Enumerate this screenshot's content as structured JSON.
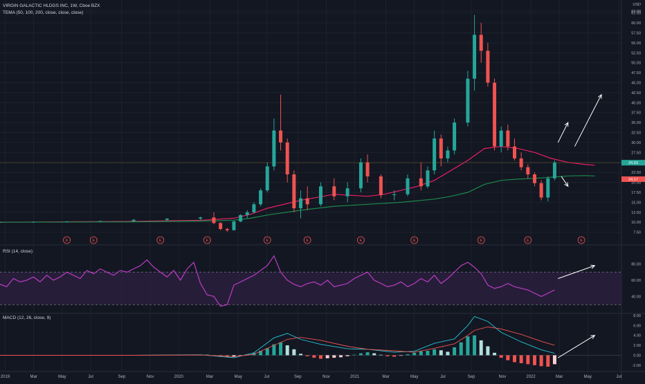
{
  "header": {
    "symbol_line": "VIRGIN GALACTIC HLDGS INC, 1W, Cboe BZX",
    "indicator_line": "TEMA (50, 100, 200, close, close, close)",
    "currency": "USD"
  },
  "panes": {
    "rsi_label": "RSI (14, close)",
    "macd_label": "MACD (12, 26, close, 9)"
  },
  "price_badges": {
    "last": "24.93",
    "tema": "24.17"
  },
  "colors": {
    "background": "#131722",
    "up": "#26a69a",
    "down": "#ef5350",
    "tema_fast": "#e91e63",
    "tema_slow": "#1b8a4b",
    "rsi": "#b23bb8",
    "macd": "#26c6da",
    "signal": "#ef5350",
    "annotation": "#ffffff"
  },
  "earnings_marker_label": "E",
  "chart_data": [
    {
      "type": "candlestick",
      "title": "VIRGIN GALACTIC HLDGS INC, 1W, Cboe BZX",
      "ylabel": "USD",
      "scale": "linear",
      "ylim": [
        7.5,
        62.5
      ],
      "y_ticks": [
        "63.00",
        "62.50",
        "60.00",
        "57.50",
        "55.00",
        "52.50",
        "50.00",
        "47.50",
        "45.00",
        "42.50",
        "40.00",
        "37.50",
        "35.00",
        "32.50",
        "30.00",
        "27.50",
        "25.00",
        "22.50",
        "20.00",
        "17.50",
        "15.00",
        "12.50",
        "10.00",
        "7.50"
      ],
      "x_ticks": [
        "2019",
        "Mar",
        "May",
        "Jul",
        "Sep",
        "Nov",
        "2020",
        "Mar",
        "May",
        "Jul",
        "Sep",
        "Nov",
        "2021",
        "Mar",
        "May",
        "Jul",
        "Sep",
        "Nov",
        "2022",
        "Mar",
        "May",
        "Jul"
      ],
      "series": [
        {
          "name": "TEMA (50)",
          "x": [
            0,
            40,
            60,
            70,
            75,
            80,
            90,
            100,
            110,
            115,
            120,
            125,
            130,
            135,
            140,
            145,
            150,
            155,
            160,
            165,
            170,
            175,
            178
          ],
          "y": [
            10,
            10.2,
            10.5,
            11,
            12,
            13.5,
            15.5,
            17,
            16.5,
            17,
            18,
            19,
            20.5,
            23,
            25.5,
            28.5,
            29,
            28.5,
            27.5,
            26,
            25,
            24.5,
            24.3
          ]
        },
        {
          "name": "TEMA (100)",
          "x": [
            0,
            40,
            60,
            70,
            75,
            80,
            90,
            100,
            110,
            120,
            130,
            135,
            140,
            145,
            150,
            155,
            160,
            165,
            170,
            175,
            178
          ],
          "y": [
            10,
            10.1,
            10.3,
            10.5,
            11,
            11.8,
            13,
            14,
            14.5,
            15,
            15.8,
            16.5,
            17.5,
            19.5,
            20.5,
            20.8,
            21,
            21.3,
            21.6,
            21.7,
            21.6
          ]
        }
      ],
      "candles": [
        {
          "x": 0,
          "o": 10,
          "h": 10.1,
          "l": 9.9,
          "c": 10.05
        },
        {
          "x": 10,
          "o": 10.05,
          "h": 10.2,
          "l": 9.95,
          "c": 10.1
        },
        {
          "x": 20,
          "o": 10.1,
          "h": 10.25,
          "l": 10,
          "c": 10.2
        },
        {
          "x": 30,
          "o": 10.2,
          "h": 10.4,
          "l": 10.1,
          "c": 10.3
        },
        {
          "x": 40,
          "o": 10.3,
          "h": 10.8,
          "l": 10.1,
          "c": 10.6
        },
        {
          "x": 50,
          "o": 10.6,
          "h": 11,
          "l": 10.3,
          "c": 10.9
        },
        {
          "x": 60,
          "o": 10.9,
          "h": 11.4,
          "l": 10.5,
          "c": 11.2
        },
        {
          "x": 64,
          "o": 11.2,
          "h": 12.5,
          "l": 9.5,
          "c": 9.8
        },
        {
          "x": 66,
          "o": 9.8,
          "h": 10,
          "l": 8,
          "c": 8.3
        },
        {
          "x": 68,
          "o": 8.3,
          "h": 8.6,
          "l": 7.6,
          "c": 8
        },
        {
          "x": 70,
          "o": 8,
          "h": 10.5,
          "l": 7.9,
          "c": 10.2
        },
        {
          "x": 72,
          "o": 10.2,
          "h": 12,
          "l": 10,
          "c": 11.8
        },
        {
          "x": 74,
          "o": 11.8,
          "h": 13,
          "l": 11,
          "c": 12.5
        },
        {
          "x": 76,
          "o": 12.5,
          "h": 15,
          "l": 12.2,
          "c": 14.5
        },
        {
          "x": 78,
          "o": 14.5,
          "h": 18.5,
          "l": 14,
          "c": 18
        },
        {
          "x": 80,
          "o": 18,
          "h": 25,
          "l": 17.5,
          "c": 24
        },
        {
          "x": 82,
          "o": 24,
          "h": 36,
          "l": 23,
          "c": 33
        },
        {
          "x": 84,
          "o": 33,
          "h": 42,
          "l": 28,
          "c": 30
        },
        {
          "x": 86,
          "o": 30,
          "h": 31,
          "l": 20,
          "c": 22
        },
        {
          "x": 88,
          "o": 22,
          "h": 23,
          "l": 12.5,
          "c": 13.5
        },
        {
          "x": 90,
          "o": 13.5,
          "h": 18,
          "l": 11,
          "c": 16
        },
        {
          "x": 92,
          "o": 16,
          "h": 19,
          "l": 13,
          "c": 14.5
        },
        {
          "x": 96,
          "o": 14.5,
          "h": 20,
          "l": 14,
          "c": 19
        },
        {
          "x": 100,
          "o": 19,
          "h": 21,
          "l": 15.5,
          "c": 16.5
        },
        {
          "x": 104,
          "o": 16.5,
          "h": 20,
          "l": 15,
          "c": 18.5
        },
        {
          "x": 108,
          "o": 18.5,
          "h": 26,
          "l": 17.5,
          "c": 25
        },
        {
          "x": 110,
          "o": 25,
          "h": 27,
          "l": 20,
          "c": 21.5
        },
        {
          "x": 114,
          "o": 21.5,
          "h": 22,
          "l": 16,
          "c": 16.8
        },
        {
          "x": 118,
          "o": 16.8,
          "h": 18,
          "l": 15.5,
          "c": 17
        },
        {
          "x": 122,
          "o": 17,
          "h": 22,
          "l": 16.5,
          "c": 21
        },
        {
          "x": 126,
          "o": 21,
          "h": 25,
          "l": 18,
          "c": 19
        },
        {
          "x": 128,
          "o": 19,
          "h": 24,
          "l": 18.5,
          "c": 23
        },
        {
          "x": 130,
          "o": 23,
          "h": 33,
          "l": 22,
          "c": 31
        },
        {
          "x": 132,
          "o": 31,
          "h": 32,
          "l": 24,
          "c": 26
        },
        {
          "x": 134,
          "o": 26,
          "h": 29,
          "l": 25,
          "c": 28
        },
        {
          "x": 136,
          "o": 28,
          "h": 36,
          "l": 27,
          "c": 35
        },
        {
          "x": 140,
          "o": 35,
          "h": 48,
          "l": 34,
          "c": 46
        },
        {
          "x": 142,
          "o": 46,
          "h": 62,
          "l": 43,
          "c": 57
        },
        {
          "x": 144,
          "o": 57,
          "h": 60,
          "l": 50,
          "c": 53
        },
        {
          "x": 146,
          "o": 53,
          "h": 55,
          "l": 44,
          "c": 45
        },
        {
          "x": 148,
          "o": 45,
          "h": 46,
          "l": 28,
          "c": 29
        },
        {
          "x": 150,
          "o": 29,
          "h": 34,
          "l": 27.5,
          "c": 33
        },
        {
          "x": 152,
          "o": 33,
          "h": 34.5,
          "l": 28,
          "c": 29
        },
        {
          "x": 154,
          "o": 29,
          "h": 31,
          "l": 25.5,
          "c": 26
        },
        {
          "x": 156,
          "o": 26,
          "h": 27.5,
          "l": 23,
          "c": 23.8
        },
        {
          "x": 158,
          "o": 23.8,
          "h": 24.5,
          "l": 21,
          "c": 22
        },
        {
          "x": 160,
          "o": 22,
          "h": 22.5,
          "l": 19,
          "c": 19.8
        },
        {
          "x": 162,
          "o": 19.8,
          "h": 20.5,
          "l": 15.5,
          "c": 16.2
        },
        {
          "x": 164,
          "o": 16.2,
          "h": 21.5,
          "l": 15.2,
          "c": 21
        },
        {
          "x": 166,
          "o": 21,
          "h": 25.5,
          "l": 20.5,
          "c": 24.93
        }
      ],
      "earnings_x": [
        20,
        28,
        48,
        62,
        80,
        92,
        108,
        124,
        144,
        158,
        174
      ],
      "annotations": [
        {
          "type": "arrow",
          "from": [
            167,
            30
          ],
          "to": [
            170,
            35
          ]
        },
        {
          "type": "arrow",
          "from": [
            172,
            29
          ],
          "to": [
            180,
            42
          ]
        },
        {
          "type": "arrow",
          "from": [
            168,
            21.5
          ],
          "to": [
            170,
            19
          ]
        }
      ]
    },
    {
      "type": "line",
      "title": "RSI (14, close)",
      "ylim": [
        20,
        100
      ],
      "y_ticks": [
        80.0,
        60.0,
        40.0
      ],
      "bands": [
        30,
        70
      ],
      "series": [
        {
          "name": "RSI",
          "x": [
            0,
            2,
            4,
            6,
            8,
            10,
            12,
            14,
            16,
            18,
            20,
            22,
            24,
            26,
            28,
            30,
            32,
            34,
            36,
            38,
            40,
            42,
            44,
            46,
            48,
            50,
            52,
            54,
            56,
            58,
            60,
            62,
            64,
            66,
            68,
            70,
            72,
            74,
            76,
            78,
            80,
            82,
            84,
            86,
            88,
            90,
            92,
            94,
            96,
            98,
            100,
            102,
            104,
            106,
            108,
            110,
            112,
            114,
            116,
            118,
            120,
            122,
            124,
            126,
            128,
            130,
            132,
            134,
            136,
            138,
            140,
            142,
            144,
            146,
            148,
            150,
            152,
            154,
            156,
            158,
            160,
            162,
            164,
            166
          ],
          "y": [
            55,
            52,
            62,
            58,
            60,
            64,
            58,
            66,
            60,
            64,
            70,
            66,
            62,
            72,
            68,
            74,
            70,
            66,
            72,
            70,
            74,
            78,
            85,
            76,
            70,
            64,
            72,
            60,
            74,
            82,
            56,
            42,
            40,
            28,
            30,
            54,
            58,
            62,
            66,
            72,
            78,
            90,
            70,
            60,
            55,
            52,
            56,
            58,
            54,
            60,
            52,
            54,
            56,
            62,
            66,
            70,
            60,
            56,
            52,
            54,
            58,
            52,
            56,
            62,
            58,
            66,
            56,
            62,
            70,
            78,
            82,
            76,
            68,
            54,
            50,
            52,
            56,
            52,
            50,
            48,
            44,
            40,
            44,
            48
          ]
        }
      ],
      "annotations": [
        {
          "type": "arrow",
          "from": [
            167,
            62
          ],
          "to": [
            178,
            78
          ]
        }
      ]
    },
    {
      "type": "bar",
      "title": "MACD (12, 26, close, 9)",
      "ylim": [
        -3,
        8
      ],
      "y_ticks": [
        "8.00",
        "6.00",
        "4.00",
        "2.00",
        "0.00",
        "-2.00"
      ],
      "histogram": {
        "x": [
          60,
          62,
          64,
          66,
          68,
          70,
          72,
          74,
          76,
          78,
          80,
          82,
          84,
          86,
          88,
          90,
          92,
          94,
          96,
          98,
          100,
          102,
          104,
          106,
          108,
          110,
          112,
          114,
          116,
          118,
          120,
          122,
          124,
          126,
          128,
          130,
          132,
          134,
          136,
          138,
          140,
          142,
          144,
          146,
          148,
          150,
          152,
          154,
          156,
          158,
          160,
          162,
          164,
          166
        ],
        "y": [
          0.1,
          0.15,
          -0.1,
          -0.3,
          -0.4,
          -0.3,
          -0.1,
          0.2,
          0.5,
          0.9,
          1.4,
          2.2,
          2.6,
          2.0,
          1.2,
          0.3,
          -0.2,
          -0.5,
          -0.7,
          -0.6,
          -0.5,
          -0.4,
          -0.2,
          0.1,
          0.4,
          0.6,
          0.4,
          0.1,
          -0.2,
          -0.3,
          -0.1,
          0.2,
          0.5,
          0.8,
          0.9,
          1.2,
          1.0,
          0.7,
          1.6,
          2.6,
          3.8,
          4.0,
          3.0,
          1.8,
          0.5,
          -0.5,
          -1.0,
          -1.4,
          -1.6,
          -1.8,
          -2.0,
          -2.2,
          -2.3,
          -1.8
        ]
      },
      "series": [
        {
          "name": "MACD",
          "x": [
            0,
            40,
            60,
            70,
            76,
            82,
            86,
            90,
            96,
            104,
            110,
            118,
            124,
            130,
            136,
            140,
            142,
            146,
            150,
            156,
            162,
            166
          ],
          "y": [
            0,
            0,
            0.1,
            -0.5,
            0.5,
            3.5,
            4.4,
            3.2,
            2.2,
            1.3,
            1.2,
            0.6,
            0.8,
            2.4,
            3.3,
            6.0,
            7.8,
            6.8,
            4.6,
            2.7,
            1.1,
            0.4
          ]
        },
        {
          "name": "Signal",
          "x": [
            0,
            40,
            60,
            70,
            76,
            82,
            86,
            90,
            96,
            104,
            110,
            118,
            124,
            130,
            136,
            140,
            142,
            146,
            150,
            156,
            162,
            166
          ],
          "y": [
            0,
            0,
            0.05,
            -0.3,
            0.2,
            2.0,
            3.2,
            3.6,
            3.0,
            1.8,
            1.2,
            0.9,
            0.6,
            1.4,
            2.3,
            4.0,
            5.0,
            5.7,
            5.3,
            4.2,
            2.8,
            2.0
          ]
        }
      ],
      "annotations": [
        {
          "type": "arrow",
          "from": [
            167,
            -0.5
          ],
          "to": [
            178,
            4
          ]
        }
      ]
    }
  ]
}
